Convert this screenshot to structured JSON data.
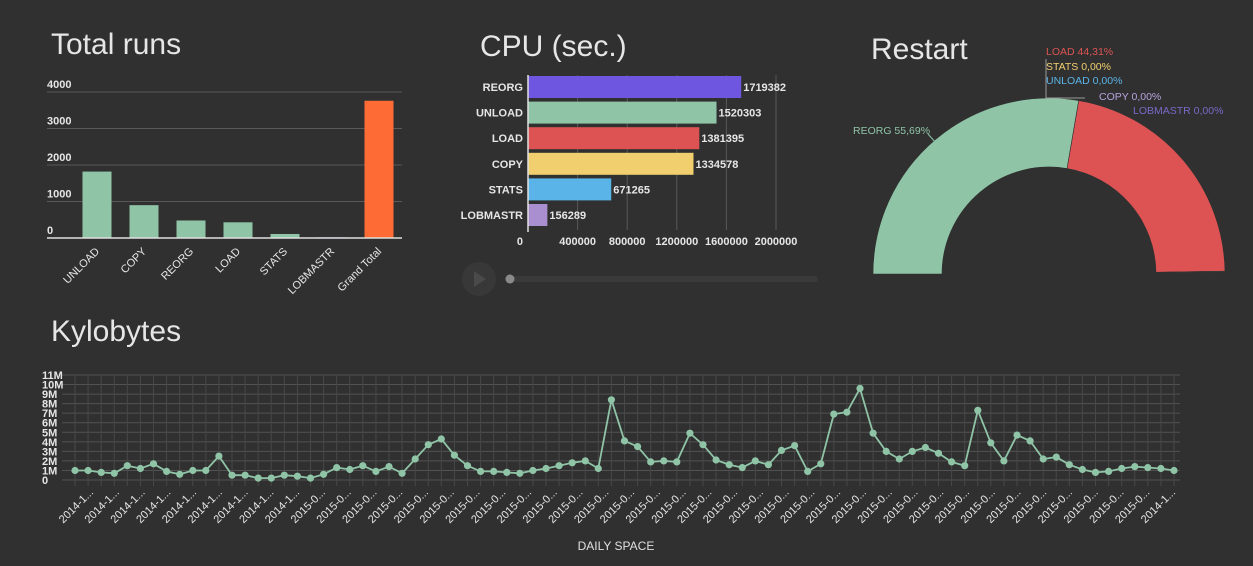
{
  "charts": {
    "total_runs": {
      "type": "bar",
      "title": "Total runs",
      "categories": [
        "UNLOAD",
        "COPY",
        "REORG",
        "LOAD",
        "STATS",
        "LOBMASTR",
        "Grand Total"
      ],
      "values": [
        1820,
        900,
        480,
        430,
        110,
        20,
        3760
      ],
      "ylim": [
        0,
        4000
      ],
      "yticks": [
        "0",
        "1000",
        "2000",
        "3000",
        "4000"
      ],
      "colors": [
        "#8fc4a7",
        "#8fc4a7",
        "#8fc4a7",
        "#8fc4a7",
        "#8fc4a7",
        "#7b68c9",
        "#ff6b35"
      ]
    },
    "cpu": {
      "type": "bar",
      "orientation": "horizontal",
      "title": "CPU (sec.)",
      "categories": [
        "REORG",
        "UNLOAD",
        "LOAD",
        "COPY",
        "STATS",
        "LOBMASTR"
      ],
      "values": [
        1719382,
        1520303,
        1381395,
        1334578,
        671265,
        156289
      ],
      "value_labels": [
        "1719382",
        "1520303",
        "1381395",
        "1334578",
        "671265",
        "156289"
      ],
      "colors": [
        "#6f56e0",
        "#8fc4a7",
        "#dd5353",
        "#f2cf6e",
        "#5ab4e8",
        "#a98fd0"
      ],
      "xlim": [
        0,
        2200000
      ],
      "xticks": [
        "0",
        "400000",
        "800000",
        "1200000",
        "1600000",
        "2000000"
      ]
    },
    "restart": {
      "type": "pie",
      "title": "Restart",
      "labels": [
        "REORG 55,69%",
        "LOAD 44,31%",
        "STATS 0,00%",
        "UNLOAD 0,00%",
        "COPY 0,00%",
        "LOBMASTR 0,00%"
      ],
      "names": [
        "REORG",
        "LOAD",
        "STATS",
        "UNLOAD",
        "COPY",
        "LOBMASTR"
      ],
      "values": [
        55.69,
        44.31,
        0.0,
        0.0,
        0.0,
        0.0
      ],
      "colors": [
        "#8fc4a7",
        "#dd5353",
        "#f2cf6e",
        "#5ab4e8",
        "#b7a3dd",
        "#7b68c9"
      ]
    },
    "kylobytes": {
      "type": "line",
      "title": "Kylobytes",
      "xlabel": "DAILY SPACE",
      "ylim": [
        0,
        11000000
      ],
      "yticks": [
        "0",
        "1M",
        "2M",
        "3M",
        "4M",
        "5M",
        "6M",
        "7M",
        "8M",
        "9M",
        "10M",
        "11M"
      ],
      "xtick_labels": [
        "2014-1...",
        "2014-1...",
        "2014-1...",
        "2014-1...",
        "2014-1...",
        "2014-1...",
        "2014-1...",
        "2014-1...",
        "2014-1...",
        "2015-0...",
        "2015-0...",
        "2015-0...",
        "2015-0...",
        "2015-0...",
        "2015-0...",
        "2015-0...",
        "2015-0...",
        "2015-0...",
        "2015-0...",
        "2015-0...",
        "2015-0...",
        "2015-0...",
        "2015-0...",
        "2015-0...",
        "2015-0...",
        "2015-0...",
        "2015-0...",
        "2015-0...",
        "2015-0...",
        "2015-0...",
        "2015-0...",
        "2015-0...",
        "2015-0...",
        "2015-0...",
        "2015-0...",
        "2015-0...",
        "2015-0...",
        "2015-0...",
        "2015-0...",
        "2015-0...",
        "2015-0...",
        "2015-0...",
        "2014-1..."
      ],
      "values": [
        1.0,
        1.0,
        0.8,
        0.7,
        1.5,
        1.2,
        1.7,
        0.9,
        0.6,
        1.0,
        1.0,
        2.5,
        0.5,
        0.5,
        0.2,
        0.2,
        0.5,
        0.4,
        0.2,
        0.6,
        1.3,
        1.1,
        1.5,
        0.9,
        1.4,
        0.7,
        2.2,
        3.7,
        4.3,
        2.6,
        1.5,
        0.9,
        0.9,
        0.8,
        0.7,
        1.0,
        1.2,
        1.5,
        1.8,
        2.0,
        1.2,
        8.4,
        4.1,
        3.5,
        1.9,
        2.0,
        1.9,
        4.9,
        3.7,
        2.1,
        1.6,
        1.3,
        2.0,
        1.6,
        3.1,
        3.6,
        0.9,
        1.7,
        6.9,
        7.1,
        9.6,
        4.9,
        3.0,
        2.2,
        3.0,
        3.4,
        2.8,
        1.9,
        1.5,
        7.3,
        3.9,
        2.0,
        4.7,
        4.1,
        2.2,
        2.4,
        1.6,
        1.1,
        0.8,
        0.9,
        1.2,
        1.4,
        1.3,
        1.2,
        1.0
      ],
      "value_unit": "M",
      "color": "#8fc4a7"
    }
  },
  "player": {
    "play_icon": "play-icon"
  }
}
